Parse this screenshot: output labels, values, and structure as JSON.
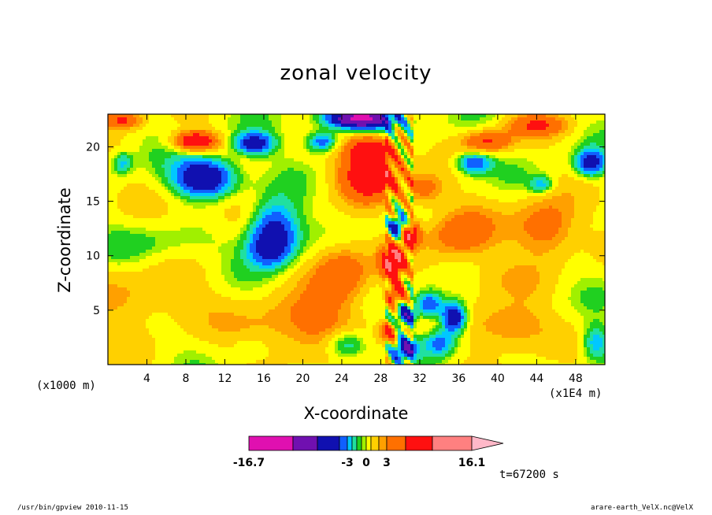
{
  "chart_data": {
    "type": "heatmap",
    "title": "zonal velocity",
    "xlabel": "X-coordinate",
    "ylabel": "Z-coordinate",
    "x_unit_left": "(x1000 m)",
    "x_unit_right": "(x1E4 m)",
    "xlim": [
      0,
      51
    ],
    "ylim": [
      0,
      23
    ],
    "x_ticks": [
      4,
      8,
      12,
      16,
      20,
      24,
      28,
      32,
      36,
      40,
      44,
      48
    ],
    "y_ticks": [
      5,
      10,
      15,
      20
    ],
    "colorbar": {
      "min": -16.7,
      "max": 16.1,
      "labels": [
        {
          "text": "-16.7",
          "value": -16.7
        },
        {
          "text": "-3",
          "value": -3
        },
        {
          "text": "0",
          "value": 0
        },
        {
          "text": "3",
          "value": 3
        },
        {
          "text": "16.1",
          "value": 16.1
        }
      ],
      "colors": [
        "#e010b0",
        "#7010b0",
        "#1010b0",
        "#1060ff",
        "#00c8ff",
        "#20e0a0",
        "#20d020",
        "#a0f000",
        "#ffff00",
        "#ffd000",
        "#ffa000",
        "#ff7000",
        "#ff1010",
        "#ff8080",
        "#ffb8c8"
      ]
    },
    "features": [
      {
        "x": 10,
        "z": 17.2,
        "sx": 3.2,
        "sz": 1.8,
        "v": -9
      },
      {
        "x": 17,
        "z": 12.5,
        "sx": 2.6,
        "sz": 2.6,
        "v": -8
      },
      {
        "x": 16.5,
        "z": 10.5,
        "sx": 2.2,
        "sz": 1.6,
        "v": -4
      },
      {
        "x": 15,
        "z": 20.3,
        "sx": 2.0,
        "sz": 1.0,
        "v": -7
      },
      {
        "x": 9,
        "z": 20.5,
        "sx": 2.2,
        "sz": 0.9,
        "v": 9
      },
      {
        "x": 1.5,
        "z": 22.5,
        "sx": 2.0,
        "sz": 0.8,
        "v": 6
      },
      {
        "x": 22,
        "z": 20.5,
        "sx": 1.6,
        "sz": 1.0,
        "v": -6
      },
      {
        "x": 26,
        "z": 22.6,
        "sx": 3.5,
        "sz": 0.9,
        "v": -14
      },
      {
        "x": 27,
        "z": 17.5,
        "sx": 3.0,
        "sz": 2.2,
        "v": 9
      },
      {
        "x": 27,
        "z": 19.8,
        "sx": 2.5,
        "sz": 1.2,
        "v": 7
      },
      {
        "x": 29.8,
        "z": 12.6,
        "sx": 0.9,
        "sz": 1.0,
        "v": -8
      },
      {
        "x": 29.2,
        "z": 9.5,
        "sx": 1.2,
        "sz": 1.4,
        "v": 10
      },
      {
        "x": 31,
        "z": 12,
        "sx": 1.0,
        "sz": 1.2,
        "v": 8
      },
      {
        "x": 29.5,
        "z": 6.5,
        "sx": 1.0,
        "sz": 1.2,
        "v": 7
      },
      {
        "x": 30.5,
        "z": 4.5,
        "sx": 1.0,
        "sz": 1.0,
        "v": -7
      },
      {
        "x": 28.8,
        "z": 3.0,
        "sx": 0.9,
        "sz": 1.0,
        "v": 6
      },
      {
        "x": 33,
        "z": 5.5,
        "sx": 1.4,
        "sz": 1.2,
        "v": -6
      },
      {
        "x": 35.5,
        "z": 4.3,
        "sx": 1.3,
        "sz": 1.4,
        "v": -9
      },
      {
        "x": 34,
        "z": 2.0,
        "sx": 1.6,
        "sz": 1.2,
        "v": -5
      },
      {
        "x": 24.5,
        "z": 1.8,
        "sx": 2.2,
        "sz": 1.4,
        "v": -5
      },
      {
        "x": 30.5,
        "z": 1.5,
        "sx": 1.2,
        "sz": 1.0,
        "v": -8
      },
      {
        "x": 24,
        "z": 8.5,
        "sx": 3.0,
        "sz": 2.8,
        "v": 5
      },
      {
        "x": 20,
        "z": 3.5,
        "sx": 6.0,
        "sz": 2.8,
        "v": 4
      },
      {
        "x": 4,
        "z": 6,
        "sx": 6.0,
        "sz": 3.0,
        "v": 2.5
      },
      {
        "x": 12,
        "z": 14,
        "sx": 6.0,
        "sz": 2.0,
        "v": 2.0
      },
      {
        "x": 36,
        "z": 12,
        "sx": 3.5,
        "sz": 2.6,
        "v": 4.5
      },
      {
        "x": 45,
        "z": 12.5,
        "sx": 3.2,
        "sz": 2.8,
        "v": 5
      },
      {
        "x": 41,
        "z": 3.5,
        "sx": 4.0,
        "sz": 2.2,
        "v": 4
      },
      {
        "x": 39,
        "z": 20.5,
        "sx": 2.5,
        "sz": 1.0,
        "v": 6
      },
      {
        "x": 44,
        "z": 22,
        "sx": 3.0,
        "sz": 1.0,
        "v": 5
      },
      {
        "x": 37.5,
        "z": 18.5,
        "sx": 1.8,
        "sz": 1.0,
        "v": -6
      },
      {
        "x": 49.5,
        "z": 18.5,
        "sx": 1.5,
        "sz": 1.2,
        "v": -7
      },
      {
        "x": 44.5,
        "z": 16.5,
        "sx": 1.2,
        "sz": 0.8,
        "v": -4
      },
      {
        "x": 1.5,
        "z": 18.5,
        "sx": 1.0,
        "sz": 1.0,
        "v": -3.5
      },
      {
        "x": 50,
        "z": 2.0,
        "sx": 1.4,
        "sz": 1.6,
        "v": -4
      },
      {
        "x": 6,
        "z": 11,
        "sx": 5.0,
        "sz": 2.0,
        "v": -1.6
      },
      {
        "x": 40,
        "z": 8,
        "sx": 4.0,
        "sz": 1.8,
        "v": 1.5
      },
      {
        "x": 14.5,
        "z": 1.5,
        "sx": 1.5,
        "sz": 1.0,
        "v": -1.5
      },
      {
        "x": 32.5,
        "z": 16,
        "sx": 2.0,
        "sz": 1.5,
        "v": 4
      }
    ]
  },
  "time_label": "t=67200 s",
  "footer_left": "/usr/bin/gpview  2010-11-15",
  "footer_right": "arare-earth_VelX.nc@VelX"
}
